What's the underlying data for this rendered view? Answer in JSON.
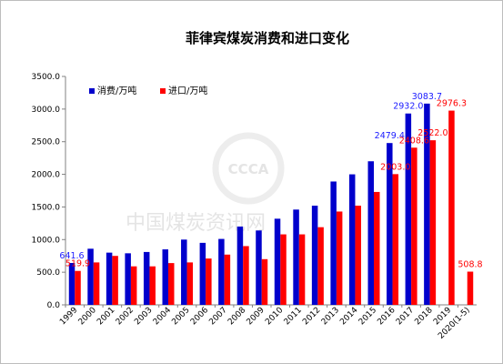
{
  "chart_data": {
    "type": "bar",
    "title": "菲律宾煤炭消费和进口变化",
    "categories": [
      "1999",
      "2000",
      "2001",
      "2002",
      "2003",
      "2004",
      "2005",
      "2006",
      "2007",
      "2008",
      "2009",
      "2010",
      "2011",
      "2012",
      "2013",
      "2014",
      "2015",
      "2016",
      "2017",
      "2018",
      "2019",
      "2020(1-5)"
    ],
    "series": [
      {
        "name": "消费/万吨",
        "color": "#0000cc",
        "values": [
          641.6,
          860,
          800,
          790,
          810,
          850,
          1000,
          950,
          1010,
          1200,
          1140,
          1320,
          1460,
          1520,
          1890,
          2000,
          2200,
          2479.4,
          2932.0,
          3083.7,
          null,
          null
        ]
      },
      {
        "name": "进口/万吨",
        "color": "#ff0000",
        "values": [
          519.9,
          650,
          750,
          590,
          590,
          640,
          650,
          710,
          770,
          900,
          700,
          1080,
          1080,
          1190,
          1430,
          1520,
          1730,
          2003.0,
          2408.6,
          2522.0,
          2976.3,
          508.8
        ]
      }
    ],
    "data_labels": [
      {
        "series": 0,
        "index": 0,
        "text": "641.6"
      },
      {
        "series": 1,
        "index": 0,
        "text": "519.9"
      },
      {
        "series": 0,
        "index": 17,
        "text": "2479.4"
      },
      {
        "series": 1,
        "index": 17,
        "text": "2003.0"
      },
      {
        "series": 0,
        "index": 18,
        "text": "2932.0"
      },
      {
        "series": 1,
        "index": 18,
        "text": "2408.6"
      },
      {
        "series": 0,
        "index": 19,
        "text": "3083.7"
      },
      {
        "series": 1,
        "index": 19,
        "text": "2522.0"
      },
      {
        "series": 1,
        "index": 20,
        "text": "2976.3"
      },
      {
        "series": 1,
        "index": 21,
        "text": "508.8"
      }
    ],
    "yticks": [
      "0.0",
      "500.0",
      "1000.0",
      "1500.0",
      "2000.0",
      "2500.0",
      "3000.0",
      "3500.0"
    ],
    "ylim": [
      0,
      3500
    ],
    "xlabel": "",
    "ylabel": "",
    "legend_position": "top-left",
    "grid": false
  },
  "watermark": {
    "text": "中国煤炭资讯网",
    "badge": "CCCA"
  }
}
